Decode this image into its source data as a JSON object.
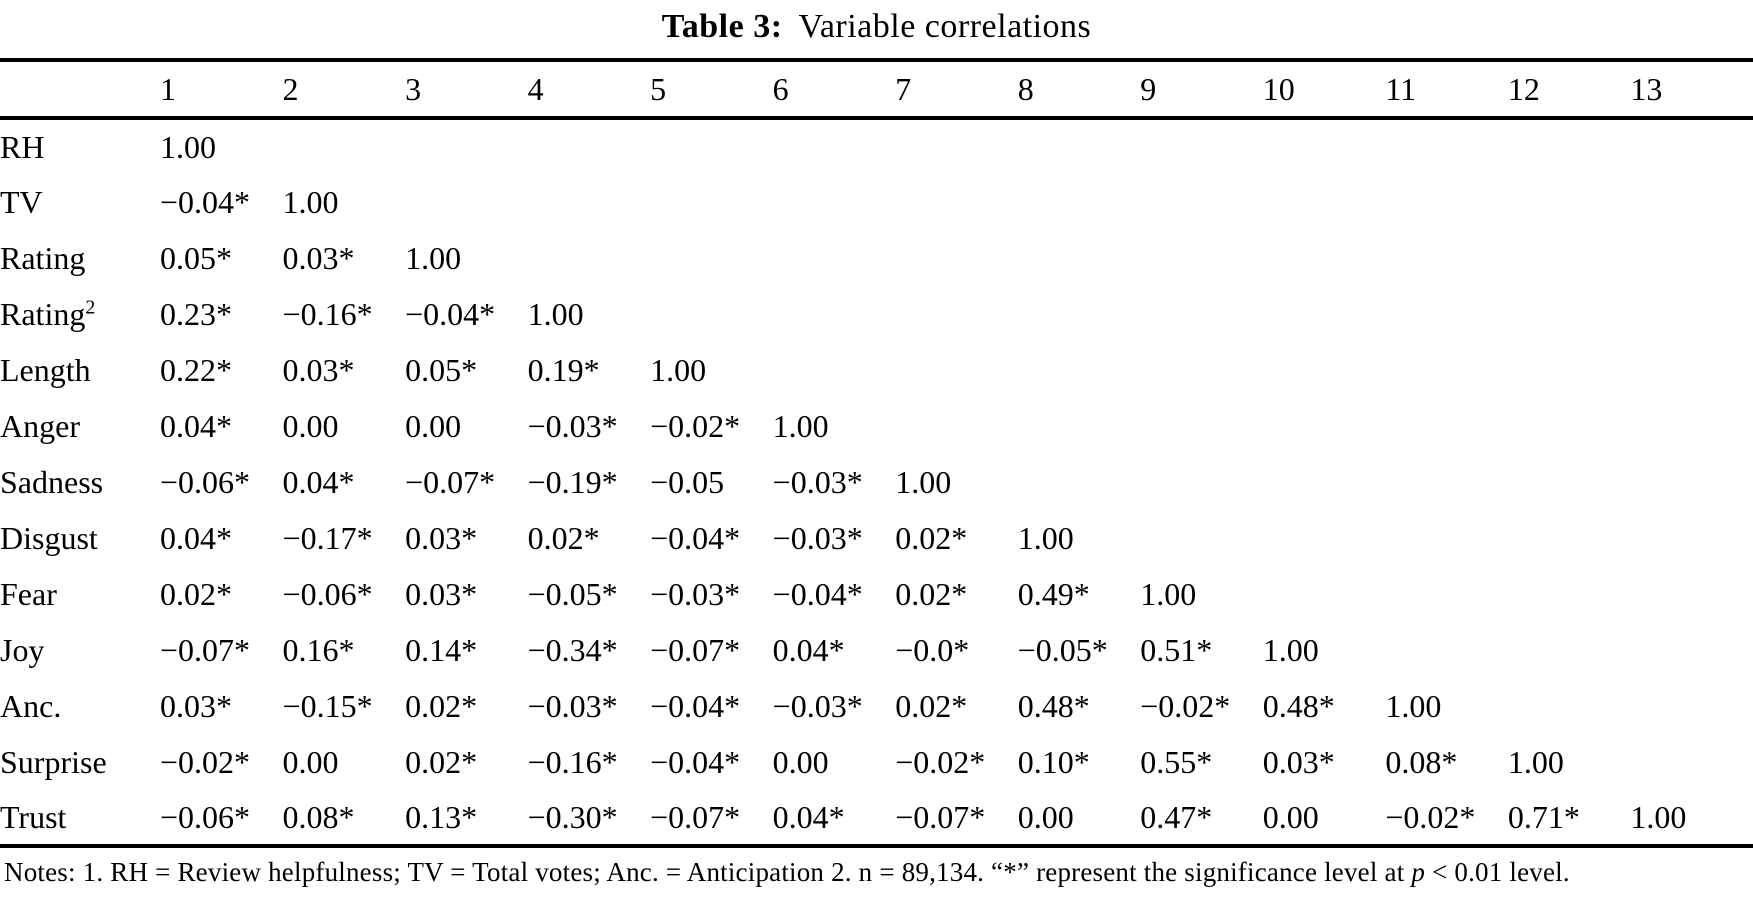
{
  "title": {
    "label": "Table 3:",
    "text": "Variable correlations"
  },
  "table": {
    "corner_label": "",
    "column_headers": [
      "1",
      "2",
      "3",
      "4",
      "5",
      "6",
      "7",
      "8",
      "9",
      "10",
      "11",
      "12",
      "13"
    ],
    "rows": [
      {
        "label": "RH",
        "sup": "",
        "values": [
          "1.00"
        ]
      },
      {
        "label": "TV",
        "sup": "",
        "values": [
          "−0.04*",
          "1.00"
        ]
      },
      {
        "label": "Rating",
        "sup": "",
        "values": [
          "0.05*",
          "0.03*",
          "1.00"
        ]
      },
      {
        "label": "Rating",
        "sup": "2",
        "values": [
          "0.23*",
          "−0.16*",
          "−0.04*",
          "1.00"
        ]
      },
      {
        "label": "Length",
        "sup": "",
        "values": [
          "0.22*",
          "0.03*",
          "0.05*",
          "0.19*",
          "1.00"
        ]
      },
      {
        "label": "Anger",
        "sup": "",
        "values": [
          "0.04*",
          "0.00",
          "0.00",
          "−0.03*",
          "−0.02*",
          "1.00"
        ]
      },
      {
        "label": "Sadness",
        "sup": "",
        "values": [
          "−0.06*",
          "0.04*",
          "−0.07*",
          "−0.19*",
          "−0.05",
          "−0.03*",
          "1.00"
        ]
      },
      {
        "label": "Disgust",
        "sup": "",
        "values": [
          "0.04*",
          "−0.17*",
          "0.03*",
          "0.02*",
          "−0.04*",
          "−0.03*",
          "0.02*",
          "1.00"
        ]
      },
      {
        "label": "Fear",
        "sup": "",
        "values": [
          "0.02*",
          "−0.06*",
          "0.03*",
          "−0.05*",
          "−0.03*",
          "−0.04*",
          "0.02*",
          "0.49*",
          "1.00"
        ]
      },
      {
        "label": "Joy",
        "sup": "",
        "values": [
          "−0.07*",
          "0.16*",
          "0.14*",
          "−0.34*",
          "−0.07*",
          "0.04*",
          "−0.0*",
          "−0.05*",
          "0.51*",
          "1.00"
        ]
      },
      {
        "label": "Anc.",
        "sup": "",
        "values": [
          "0.03*",
          "−0.15*",
          "0.02*",
          "−0.03*",
          "−0.04*",
          "−0.03*",
          "0.02*",
          "0.48*",
          "−0.02*",
          "0.48*",
          "1.00"
        ]
      },
      {
        "label": "Surprise",
        "sup": "",
        "values": [
          "−0.02*",
          "0.00",
          "0.02*",
          "−0.16*",
          "−0.04*",
          "0.00",
          "−0.02*",
          "0.10*",
          "0.55*",
          "0.03*",
          "0.08*",
          "1.00"
        ]
      },
      {
        "label": "Trust",
        "sup": "",
        "values": [
          "−0.06*",
          "0.08*",
          "0.13*",
          "−0.30*",
          "−0.07*",
          "0.04*",
          "−0.07*",
          "0.00",
          "0.47*",
          "0.00",
          "−0.02*",
          "0.71*",
          "1.00"
        ]
      }
    ]
  },
  "notes": {
    "prefix": "Notes: 1. RH = Review helpfulness; TV = Total votes; Anc. = Anticipation 2. n = 89,134. “*” represent the significance level at ",
    "italic_var": "p",
    "suffix": " < 0.01 level."
  },
  "colors": {
    "text": "#000000",
    "background": "#ffffff",
    "rule": "#000000"
  }
}
